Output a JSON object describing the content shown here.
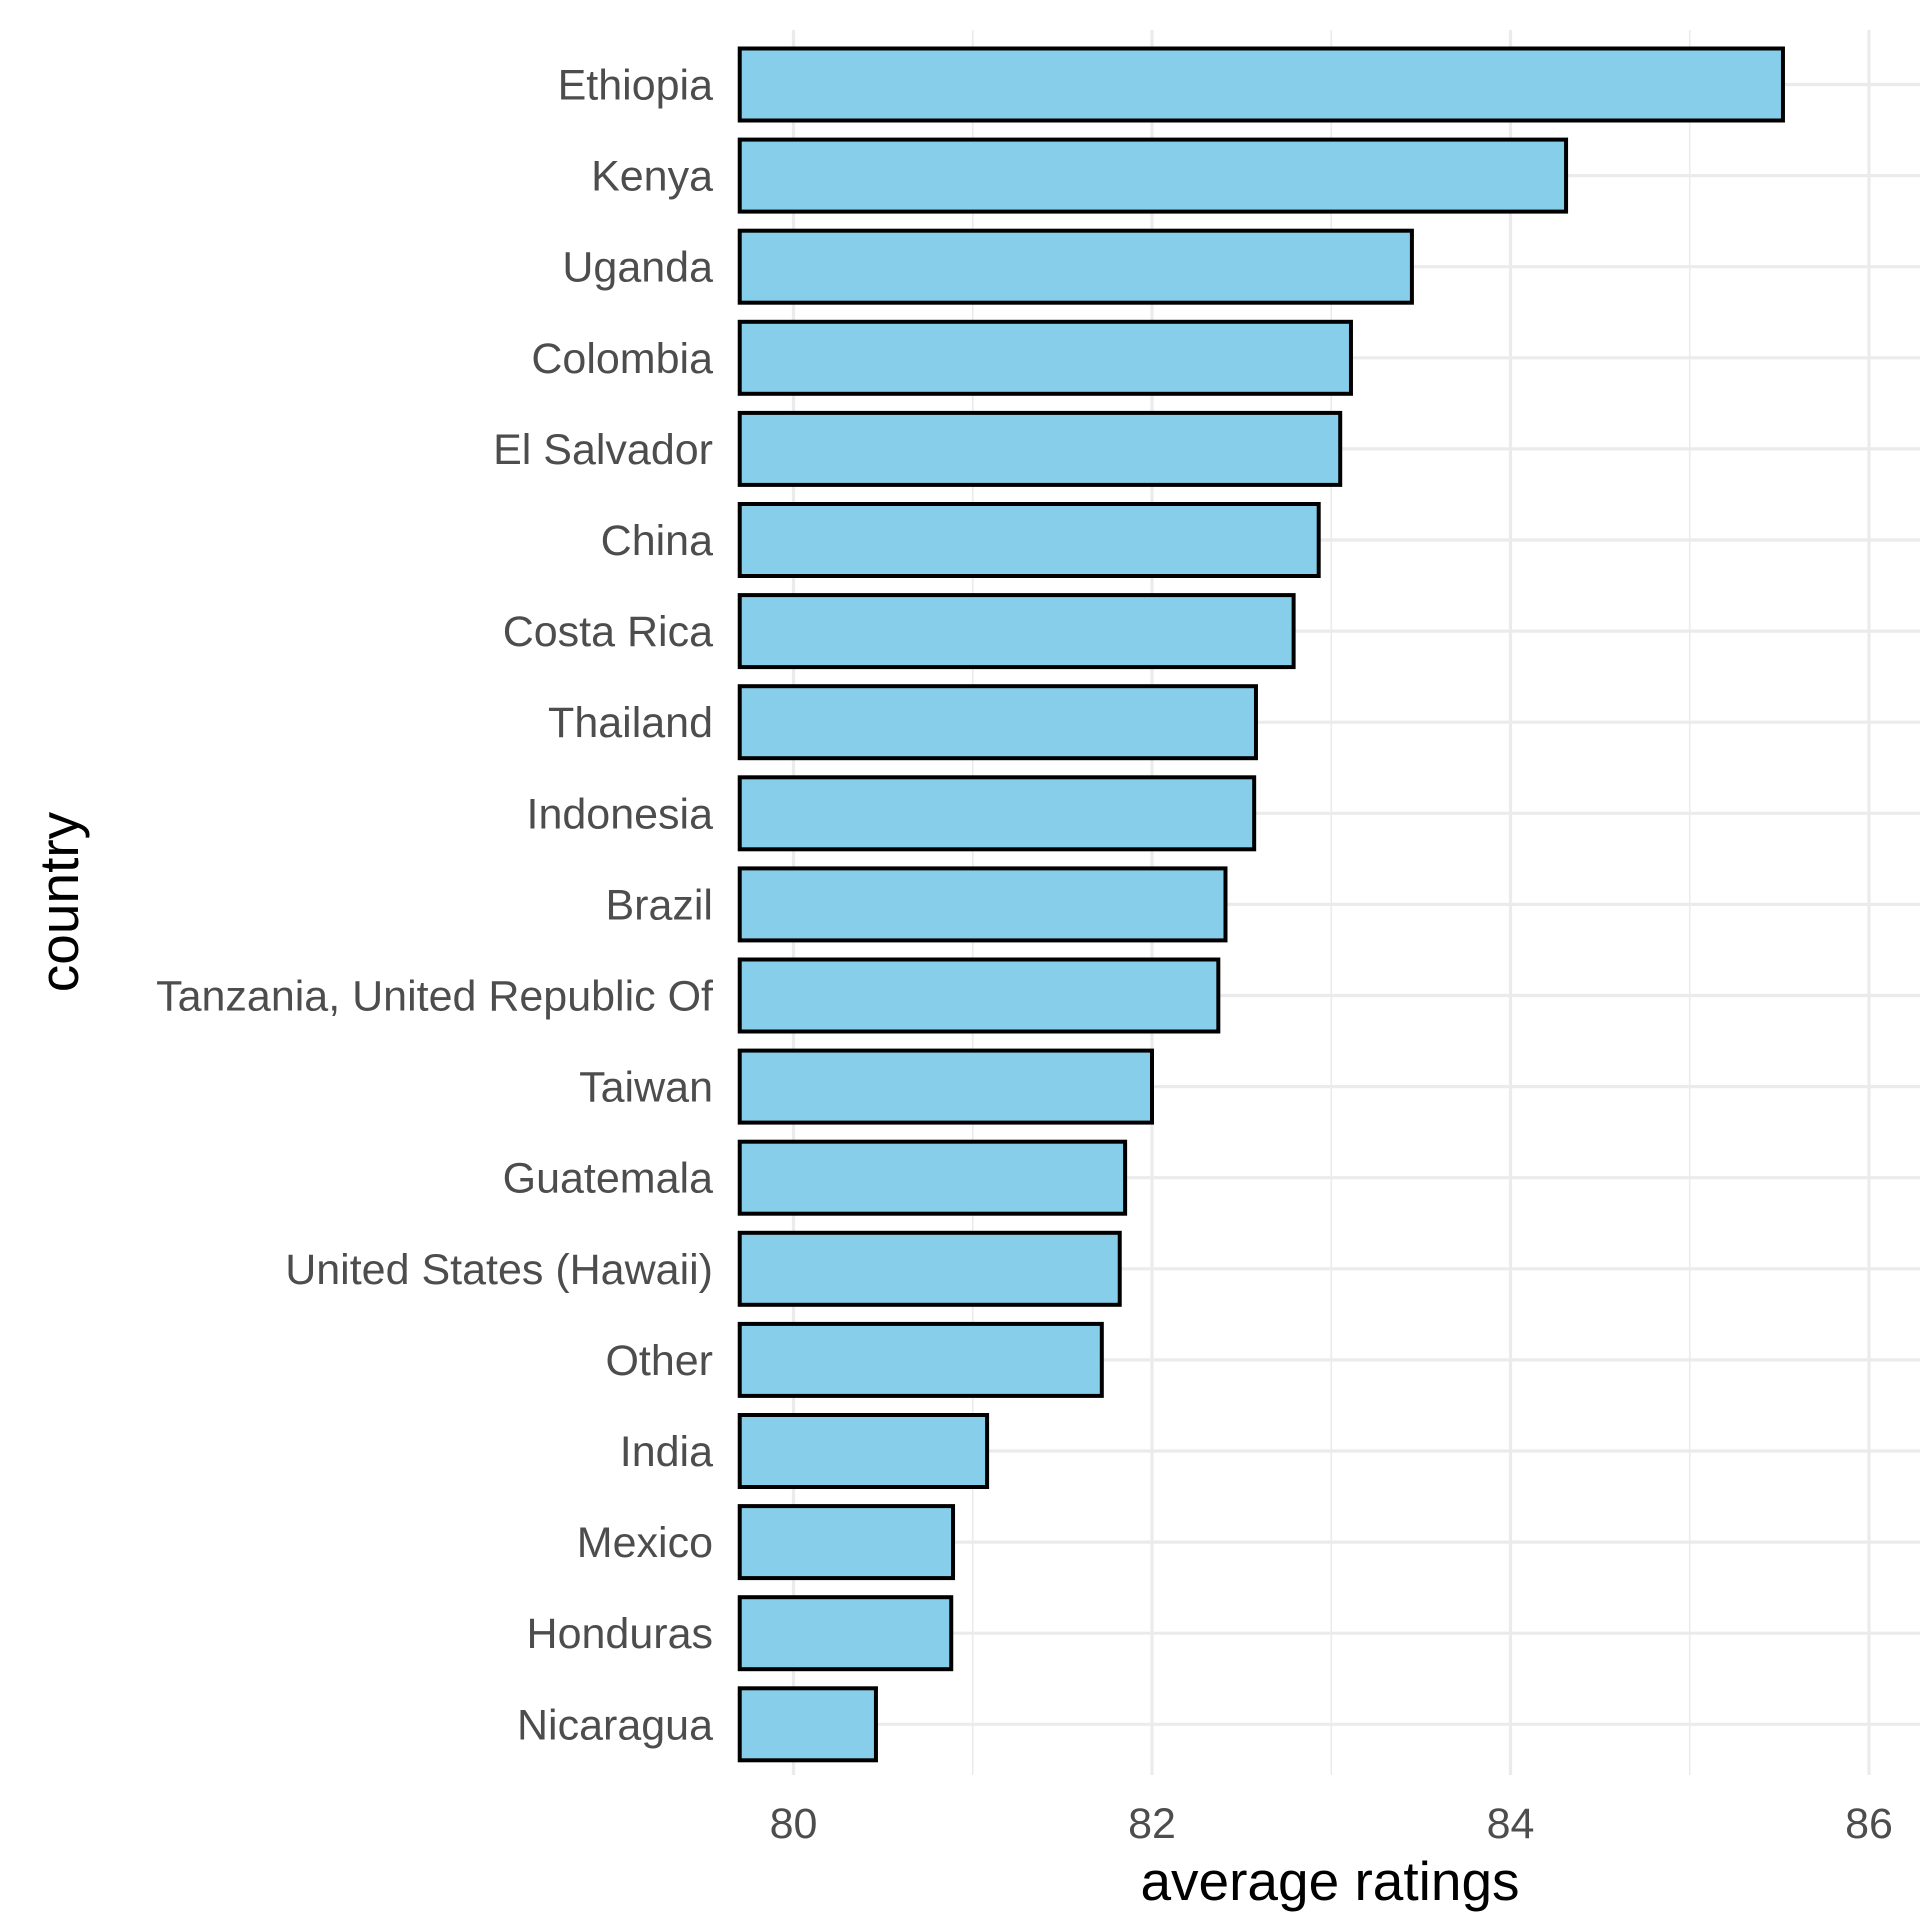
{
  "chart_data": {
    "type": "bar",
    "orientation": "horizontal",
    "title": "",
    "xlabel": "average ratings",
    "ylabel": "country",
    "categories": [
      "Ethiopia",
      "Kenya",
      "Uganda",
      "Colombia",
      "El Salvador",
      "China",
      "Costa Rica",
      "Thailand",
      "Indonesia",
      "Brazil",
      "Tanzania, United Republic Of",
      "Taiwan",
      "Guatemala",
      "United States (Hawaii)",
      "Other",
      "India",
      "Mexico",
      "Honduras",
      "Nicaragua"
    ],
    "values": [
      85.52,
      84.31,
      83.45,
      83.11,
      83.05,
      82.93,
      82.79,
      82.58,
      82.57,
      82.41,
      82.37,
      82.0,
      81.85,
      81.82,
      81.72,
      81.08,
      80.89,
      80.88,
      80.46
    ],
    "xlim": [
      79.7,
      86.3
    ],
    "xticks": [
      "80",
      "82",
      "84",
      "86"
    ],
    "xtick_values": [
      80,
      82,
      84,
      86
    ],
    "grid": true,
    "colors": {
      "bar_fill": "#87CEEB",
      "bar_outline": "#000000",
      "grid": "#ebebeb",
      "tick_text": "#4d4d4d",
      "title_text": "#000000"
    }
  }
}
